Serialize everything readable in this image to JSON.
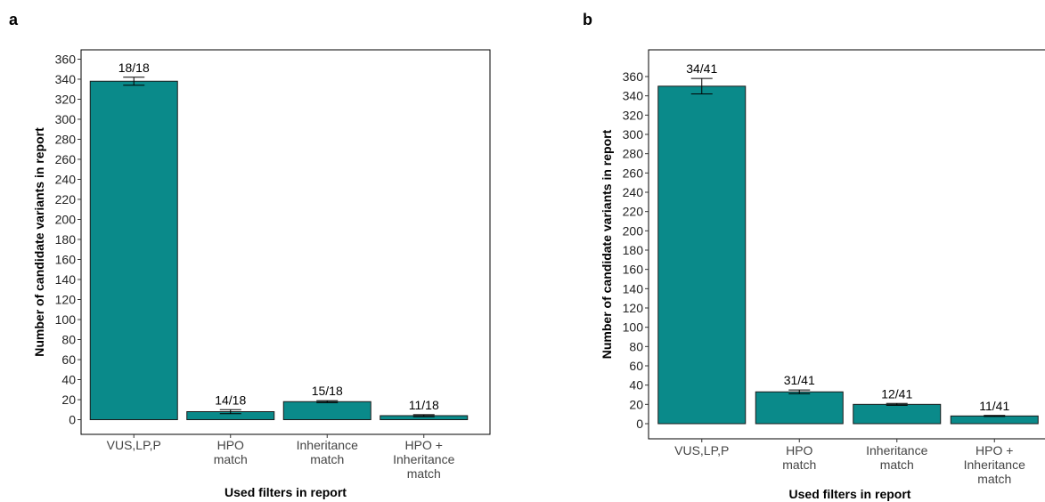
{
  "panels": [
    {
      "letter": "a"
    },
    {
      "letter": "b"
    }
  ],
  "chart_data": [
    {
      "type": "bar",
      "panel": "a",
      "categories": [
        "VUS,LP,P",
        "HPO\nmatch",
        "Inheritance\nmatch",
        "HPO +\nInheritance\nmatch"
      ],
      "values": [
        338,
        8,
        18,
        4
      ],
      "errors": [
        4,
        2,
        1,
        1
      ],
      "data_labels": [
        "18/18",
        "14/18",
        "15/18",
        "11/18"
      ],
      "xlabel": "Used filters in report",
      "ylabel": "Number of candidate variants in report",
      "ylim": [
        0,
        360
      ],
      "yticks": [
        0,
        20,
        40,
        60,
        80,
        100,
        120,
        140,
        160,
        180,
        200,
        220,
        240,
        260,
        280,
        300,
        320,
        340,
        360
      ],
      "bar_color": "#0a8a8a",
      "grid": false
    },
    {
      "type": "bar",
      "panel": "b",
      "categories": [
        "VUS,LP,P",
        "HPO\nmatch",
        "Inheritance\nmatch",
        "HPO +\nInheritance\nmatch"
      ],
      "values": [
        350,
        33,
        20,
        8
      ],
      "errors": [
        8,
        2,
        1,
        0.5
      ],
      "data_labels": [
        "34/41",
        "31/41",
        "12/41",
        "11/41"
      ],
      "xlabel": "Used filters in report",
      "ylabel": "Number of candidate variants in report",
      "ylim": [
        0,
        360
      ],
      "yticks": [
        0,
        20,
        40,
        60,
        80,
        100,
        120,
        140,
        160,
        180,
        200,
        220,
        240,
        260,
        280,
        300,
        320,
        340,
        360
      ],
      "bar_color": "#0a8a8a",
      "grid": false
    }
  ]
}
